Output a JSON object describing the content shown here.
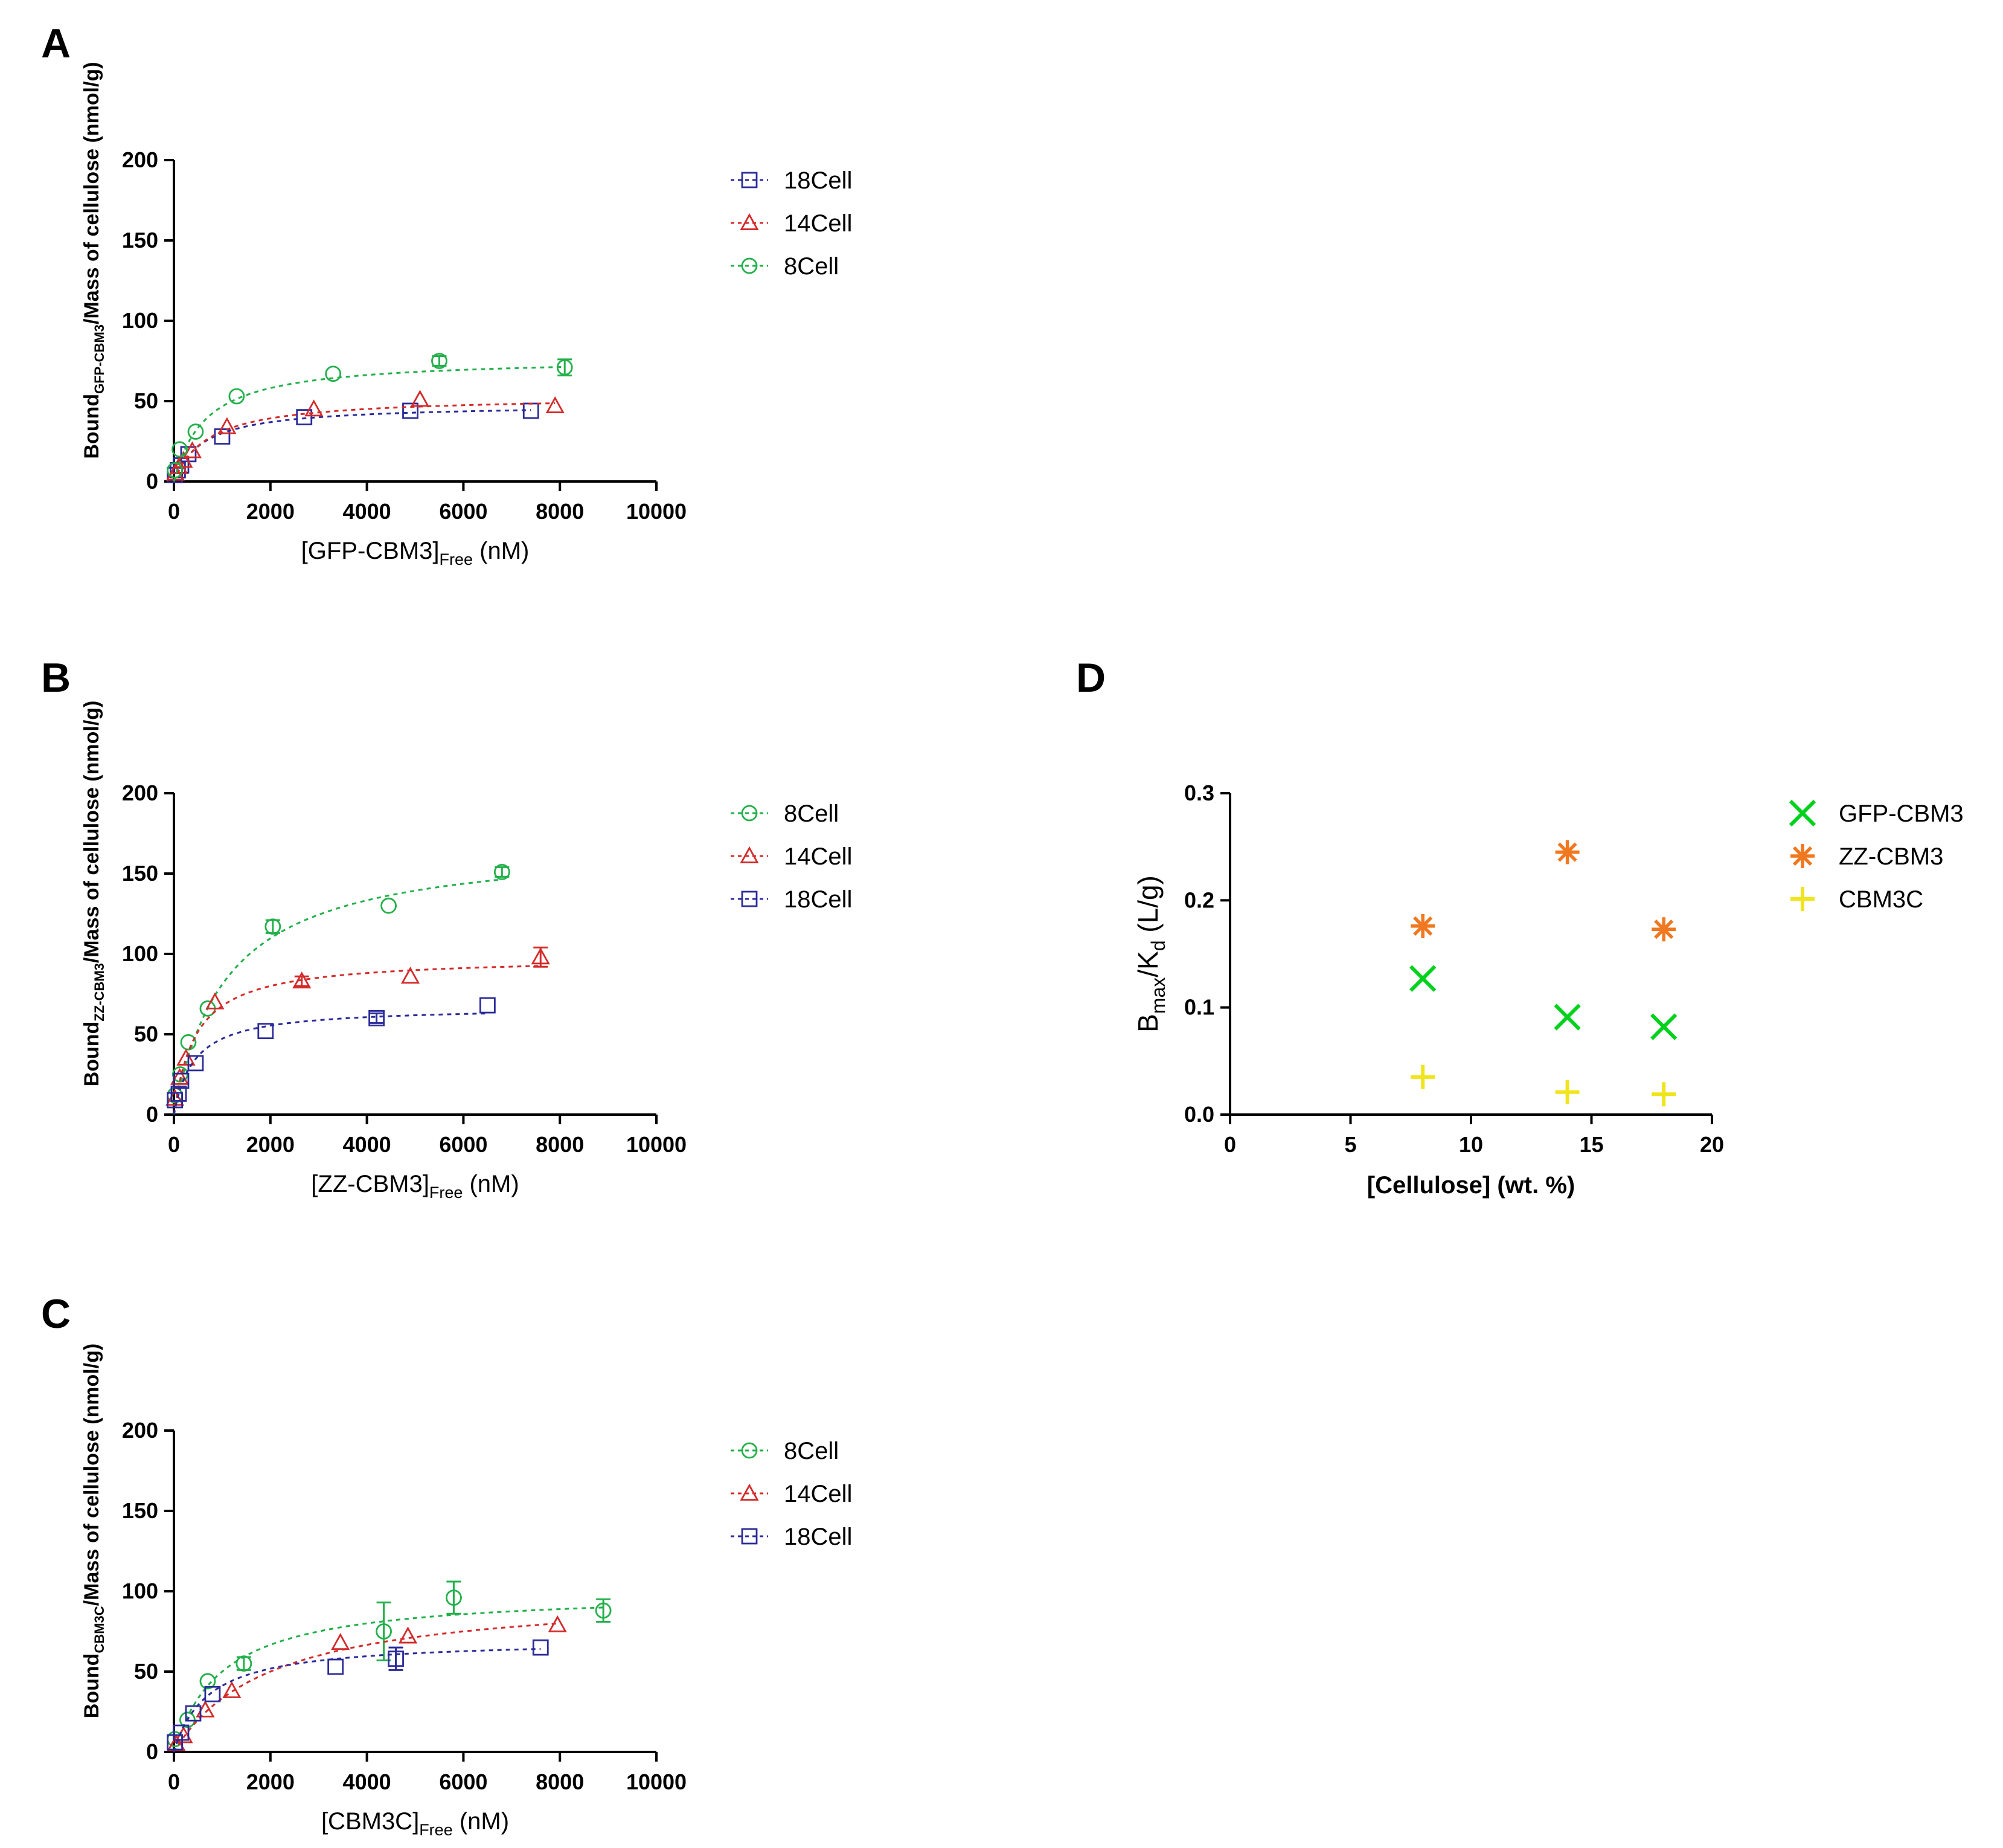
{
  "panels": [
    {
      "letter": "A",
      "legend": [
        "18Cell",
        "14Cell",
        "8Cell"
      ],
      "chart_data": {
        "type": "scatter",
        "xlabel": "[GFP-CBM3]",
        "xlabel_sub": "Free",
        "xlabel_suffix": " (nM)",
        "ylabel": "Bound",
        "ylabel_sub": "GFP-CBM3",
        "ylabel_suffix": "/Mass of cellulose (nmol/g)",
        "xlim": [
          0,
          10000
        ],
        "ylim": [
          0,
          200
        ],
        "xticks": [
          0,
          2000,
          4000,
          6000,
          8000,
          10000
        ],
        "yticks": [
          0,
          50,
          100,
          150,
          200
        ],
        "series": [
          {
            "name": "18Cell",
            "marker": "square",
            "color": "#2b2b9a",
            "points": [
              [
                20,
                4
              ],
              [
                80,
                7
              ],
              [
                150,
                10
              ],
              [
                300,
                17
              ],
              [
                1000,
                28
              ],
              [
                2700,
                40
              ],
              [
                4900,
                44
              ],
              [
                7400,
                44
              ]
            ],
            "err": [
              0,
              0,
              0,
              0,
              0,
              0,
              0,
              0
            ],
            "fit": {
              "bmax": 48,
              "kd": 600
            }
          },
          {
            "name": "14Cell",
            "marker": "triangle",
            "color": "#d42a2a",
            "points": [
              [
                30,
                5
              ],
              [
                100,
                9
              ],
              [
                200,
                13
              ],
              [
                380,
                19
              ],
              [
                1100,
                34
              ],
              [
                2900,
                45
              ],
              [
                5100,
                51
              ],
              [
                7900,
                47
              ]
            ],
            "err": [
              0,
              0,
              0,
              0,
              0,
              0,
              0,
              0
            ],
            "fit": {
              "bmax": 53,
              "kd": 700
            }
          },
          {
            "name": "8Cell",
            "marker": "circle",
            "color": "#22b04a",
            "points": [
              [
                20,
                7
              ],
              [
                120,
                20
              ],
              [
                450,
                31
              ],
              [
                1300,
                53
              ],
              [
                3300,
                67
              ],
              [
                5500,
                75
              ],
              [
                8100,
                71
              ]
            ],
            "err": [
              0,
              0,
              0,
              0,
              0,
              3,
              5
            ],
            "fit": {
              "bmax": 77,
              "kd": 650
            }
          }
        ]
      }
    },
    {
      "letter": "B",
      "legend": [
        "8Cell",
        "14Cell",
        "18Cell"
      ],
      "chart_data": {
        "type": "scatter",
        "xlabel": "[ZZ-CBM3]",
        "xlabel_sub": "Free",
        "xlabel_suffix": " (nM)",
        "ylabel": "Bound",
        "ylabel_sub": "ZZ-CBM3",
        "ylabel_suffix": "/Mass of cellulose (nmol/g)",
        "xlim": [
          0,
          10000
        ],
        "ylim": [
          0,
          200
        ],
        "xticks": [
          0,
          2000,
          4000,
          6000,
          8000,
          10000
        ],
        "yticks": [
          0,
          50,
          100,
          150,
          200
        ],
        "series": [
          {
            "name": "8Cell",
            "marker": "circle",
            "color": "#22b04a",
            "points": [
              [
                20,
                12
              ],
              [
                130,
                25
              ],
              [
                300,
                45
              ],
              [
                700,
                66
              ],
              [
                2050,
                117
              ],
              [
                4450,
                130
              ],
              [
                6800,
                151
              ]
            ],
            "err": [
              0,
              0,
              0,
              0,
              4,
              0,
              3
            ],
            "fit": {
              "bmax": 170,
              "kd": 1100
            }
          },
          {
            "name": "14Cell",
            "marker": "triangle",
            "color": "#d42a2a",
            "points": [
              [
                20,
                10
              ],
              [
                120,
                23
              ],
              [
                250,
                35
              ],
              [
                850,
                70
              ],
              [
                2650,
                83
              ],
              [
                4900,
                86
              ],
              [
                7600,
                98
              ]
            ],
            "err": [
              0,
              0,
              0,
              0,
              3,
              0,
              6
            ],
            "fit": {
              "bmax": 98,
              "kd": 450
            }
          },
          {
            "name": "18Cell",
            "marker": "square",
            "color": "#2b2b9a",
            "points": [
              [
                20,
                9
              ],
              [
                100,
                13
              ],
              [
                150,
                21
              ],
              [
                450,
                32
              ],
              [
                1900,
                52
              ],
              [
                4200,
                60
              ],
              [
                6500,
                68
              ]
            ],
            "err": [
              0,
              0,
              0,
              0,
              0,
              3,
              0
            ],
            "fit": {
              "bmax": 67,
              "kd": 420
            }
          }
        ]
      }
    },
    {
      "letter": "C",
      "legend": [
        "8Cell",
        "14Cell",
        "18Cell"
      ],
      "chart_data": {
        "type": "scatter",
        "xlabel": "[CBM3C]",
        "xlabel_sub": "Free",
        "xlabel_suffix": " (nM)",
        "ylabel": "Bound",
        "ylabel_sub": "CBM3C",
        "ylabel_suffix": "/Mass of cellulose (nmol/g)",
        "xlim": [
          0,
          10000
        ],
        "ylim": [
          0,
          200
        ],
        "xticks": [
          0,
          2000,
          4000,
          6000,
          8000,
          10000
        ],
        "yticks": [
          0,
          50,
          100,
          150,
          200
        ],
        "series": [
          {
            "name": "8Cell",
            "marker": "circle",
            "color": "#22b04a",
            "points": [
              [
                20,
                8
              ],
              [
                280,
                20
              ],
              [
                700,
                44
              ],
              [
                1450,
                55
              ],
              [
                4350,
                75
              ],
              [
                5800,
                96
              ],
              [
                8900,
                88
              ]
            ],
            "err": [
              0,
              0,
              0,
              4,
              18,
              10,
              7
            ],
            "fit": {
              "bmax": 100,
              "kd": 1000
            }
          },
          {
            "name": "14Cell",
            "marker": "triangle",
            "color": "#d42a2a",
            "points": [
              [
                50,
                5
              ],
              [
                200,
                10
              ],
              [
                650,
                26
              ],
              [
                1200,
                38
              ],
              [
                3450,
                68
              ],
              [
                4850,
                72
              ],
              [
                7950,
                79
              ]
            ],
            "err": [
              0,
              0,
              0,
              0,
              0,
              0,
              0
            ],
            "fit": {
              "bmax": 100,
              "kd": 2000
            }
          },
          {
            "name": "18Cell",
            "marker": "square",
            "color": "#2b2b9a",
            "points": [
              [
                20,
                6
              ],
              [
                150,
                12
              ],
              [
                400,
                24
              ],
              [
                800,
                36
              ],
              [
                3350,
                53
              ],
              [
                4600,
                58
              ],
              [
                7600,
                65
              ]
            ],
            "err": [
              0,
              0,
              0,
              0,
              0,
              7,
              0
            ],
            "fit": {
              "bmax": 70,
              "kd": 700
            }
          }
        ]
      }
    },
    {
      "letter": "D",
      "legend": [
        "GFP-CBM3",
        "ZZ-CBM3",
        "CBM3C"
      ],
      "chart_data": {
        "type": "scatter",
        "xlabel": "[Cellulose] (wt. %)",
        "ylabel_main": "B",
        "ylabel_sub1": "max",
        "ylabel_mid": "/K",
        "ylabel_sub2": "d",
        "ylabel_suffix": " (L/g)",
        "xlim": [
          0,
          20
        ],
        "ylim": [
          0,
          0.3
        ],
        "xticks": [
          0,
          5,
          10,
          15,
          20
        ],
        "yticks": [
          "0.0",
          "0.1",
          "0.2",
          "0.3"
        ],
        "series": [
          {
            "name": "GFP-CBM3",
            "marker": "x",
            "color": "#00d21c",
            "points": [
              [
                8,
                0.127
              ],
              [
                14,
                0.091
              ],
              [
                18,
                0.082
              ]
            ]
          },
          {
            "name": "ZZ-CBM3",
            "marker": "asterisk",
            "color": "#f07820",
            "points": [
              [
                8,
                0.176
              ],
              [
                14,
                0.245
              ],
              [
                18,
                0.173
              ]
            ]
          },
          {
            "name": "CBM3C",
            "marker": "plus",
            "color": "#f0e41c",
            "points": [
              [
                8,
                0.035
              ],
              [
                14,
                0.021
              ],
              [
                18,
                0.019
              ]
            ]
          }
        ]
      }
    }
  ]
}
